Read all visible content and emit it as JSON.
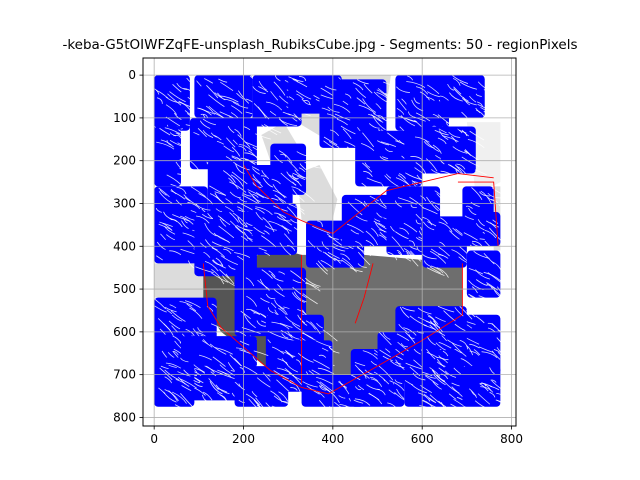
{
  "chart_data": {
    "type": "image",
    "title": "-keba-G5tOIWFZqFE-unsplash_RubiksCube.jpg - Segments: 50 - regionPixels",
    "xlim": [
      -25,
      810
    ],
    "ylim": [
      820,
      -40
    ],
    "xticks": [
      0,
      200,
      400,
      600,
      800
    ],
    "yticks": [
      0,
      100,
      200,
      300,
      400,
      500,
      600,
      700,
      800
    ],
    "grid": true,
    "image_extent": {
      "x": [
        0,
        775
      ],
      "y": [
        0,
        775
      ]
    },
    "region_fill_colors": {
      "light": "#dcdcdc",
      "lightest": "#f0f0f0",
      "dark": "#555555",
      "mid": "#6e6e6e"
    },
    "stroke_colors": {
      "region_pixels": "#0000ff",
      "segment_boundary": "#ff0000",
      "background": "#ffffff",
      "grid": "#b0b0b0",
      "axis": "#000000"
    },
    "regions": [
      {
        "shade": "light",
        "points": [
          [
            330,
            0
          ],
          [
            530,
            0
          ],
          [
            520,
            70
          ],
          [
            460,
            130
          ],
          [
            400,
            160
          ],
          [
            320,
            110
          ]
        ]
      },
      {
        "shade": "light",
        "points": [
          [
            240,
            140
          ],
          [
            290,
            110
          ],
          [
            330,
            180
          ],
          [
            300,
            220
          ],
          [
            260,
            200
          ]
        ]
      },
      {
        "shade": "light",
        "points": [
          [
            320,
            230
          ],
          [
            370,
            210
          ],
          [
            410,
            290
          ],
          [
            390,
            380
          ],
          [
            330,
            340
          ]
        ]
      },
      {
        "shade": "lightest",
        "points": [
          [
            700,
            110
          ],
          [
            775,
            110
          ],
          [
            775,
            250
          ],
          [
            720,
            280
          ]
        ]
      },
      {
        "shade": "light",
        "points": [
          [
            0,
            440
          ],
          [
            120,
            440
          ],
          [
            120,
            520
          ],
          [
            0,
            520
          ]
        ]
      },
      {
        "shade": "dark",
        "points": [
          [
            110,
            450
          ],
          [
            190,
            450
          ],
          [
            260,
            400
          ],
          [
            330,
            420
          ],
          [
            330,
            720
          ],
          [
            260,
            690
          ],
          [
            150,
            600
          ],
          [
            110,
            540
          ]
        ]
      },
      {
        "shade": "mid",
        "points": [
          [
            330,
            420
          ],
          [
            470,
            420
          ],
          [
            690,
            440
          ],
          [
            690,
            560
          ],
          [
            600,
            620
          ],
          [
            500,
            670
          ],
          [
            390,
            730
          ],
          [
            330,
            720
          ]
        ]
      },
      {
        "shade": "light",
        "points": [
          [
            760,
            260
          ],
          [
            775,
            260
          ],
          [
            775,
            410
          ],
          [
            760,
            410
          ]
        ]
      }
    ],
    "boundaries": [
      [
        [
          200,
          210
        ],
        [
          230,
          260
        ],
        [
          290,
          320
        ],
        [
          330,
          340
        ],
        [
          400,
          370
        ],
        [
          460,
          320
        ],
        [
          520,
          270
        ],
        [
          600,
          250
        ],
        [
          680,
          230
        ],
        [
          760,
          240
        ]
      ],
      [
        [
          110,
          440
        ],
        [
          120,
          540
        ],
        [
          150,
          590
        ],
        [
          260,
          690
        ],
        [
          330,
          730
        ],
        [
          390,
          745
        ],
        [
          500,
          680
        ],
        [
          600,
          620
        ],
        [
          690,
          560
        ],
        [
          690,
          440
        ]
      ],
      [
        [
          330,
          420
        ],
        [
          330,
          720
        ]
      ],
      [
        [
          490,
          440
        ],
        [
          470,
          520
        ],
        [
          450,
          580
        ]
      ],
      [
        [
          680,
          250
        ],
        [
          760,
          250
        ],
        [
          770,
          400
        ]
      ]
    ],
    "region_pixel_blobs": [
      {
        "x": [
          0,
          80
        ],
        "y": [
          0,
          130
        ]
      },
      {
        "x": [
          90,
          220
        ],
        "y": [
          0,
          100
        ]
      },
      {
        "x": [
          0,
          60
        ],
        "y": [
          120,
          260
        ]
      },
      {
        "x": [
          80,
          230
        ],
        "y": [
          100,
          220
        ]
      },
      {
        "x": [
          220,
          330
        ],
        "y": [
          0,
          120
        ]
      },
      {
        "x": [
          300,
          420
        ],
        "y": [
          0,
          90
        ]
      },
      {
        "x": [
          370,
          520
        ],
        "y": [
          10,
          170
        ]
      },
      {
        "x": [
          540,
          660
        ],
        "y": [
          0,
          130
        ]
      },
      {
        "x": [
          640,
          740
        ],
        "y": [
          0,
          100
        ]
      },
      {
        "x": [
          450,
          600
        ],
        "y": [
          130,
          260
        ]
      },
      {
        "x": [
          560,
          720
        ],
        "y": [
          120,
          230
        ]
      },
      {
        "x": [
          260,
          340
        ],
        "y": [
          160,
          280
        ]
      },
      {
        "x": [
          210,
          310
        ],
        "y": [
          210,
          320
        ]
      },
      {
        "x": [
          120,
          220
        ],
        "y": [
          200,
          330
        ]
      },
      {
        "x": [
          0,
          120
        ],
        "y": [
          260,
          440
        ]
      },
      {
        "x": [
          90,
          230
        ],
        "y": [
          320,
          470
        ]
      },
      {
        "x": [
          220,
          320
        ],
        "y": [
          300,
          420
        ]
      },
      {
        "x": [
          340,
          470
        ],
        "y": [
          340,
          450
        ]
      },
      {
        "x": [
          420,
          560
        ],
        "y": [
          280,
          400
        ]
      },
      {
        "x": [
          520,
          640
        ],
        "y": [
          260,
          420
        ]
      },
      {
        "x": [
          600,
          700
        ],
        "y": [
          330,
          450
        ]
      },
      {
        "x": [
          690,
          760
        ],
        "y": [
          260,
          400
        ]
      },
      {
        "x": [
          740,
          775
        ],
        "y": [
          320,
          400
        ]
      },
      {
        "x": [
          700,
          775
        ],
        "y": [
          410,
          520
        ]
      },
      {
        "x": [
          180,
          340
        ],
        "y": [
          450,
          610
        ]
      },
      {
        "x": [
          250,
          380
        ],
        "y": [
          560,
          690
        ]
      },
      {
        "x": [
          0,
          140
        ],
        "y": [
          520,
          670
        ]
      },
      {
        "x": [
          60,
          230
        ],
        "y": [
          610,
          760
        ]
      },
      {
        "x": [
          0,
          90
        ],
        "y": [
          660,
          775
        ]
      },
      {
        "x": [
          180,
          300
        ],
        "y": [
          680,
          775
        ]
      },
      {
        "x": [
          260,
          400
        ],
        "y": [
          620,
          740
        ]
      },
      {
        "x": [
          330,
          470
        ],
        "y": [
          700,
          775
        ]
      },
      {
        "x": [
          440,
          560
        ],
        "y": [
          640,
          775
        ]
      },
      {
        "x": [
          500,
          640
        ],
        "y": [
          600,
          720
        ]
      },
      {
        "x": [
          560,
          700
        ],
        "y": [
          660,
          775
        ]
      },
      {
        "x": [
          600,
          775
        ],
        "y": [
          560,
          700
        ]
      },
      {
        "x": [
          690,
          775
        ],
        "y": [
          680,
          775
        ]
      },
      {
        "x": [
          540,
          700
        ],
        "y": [
          540,
          640
        ]
      }
    ]
  }
}
